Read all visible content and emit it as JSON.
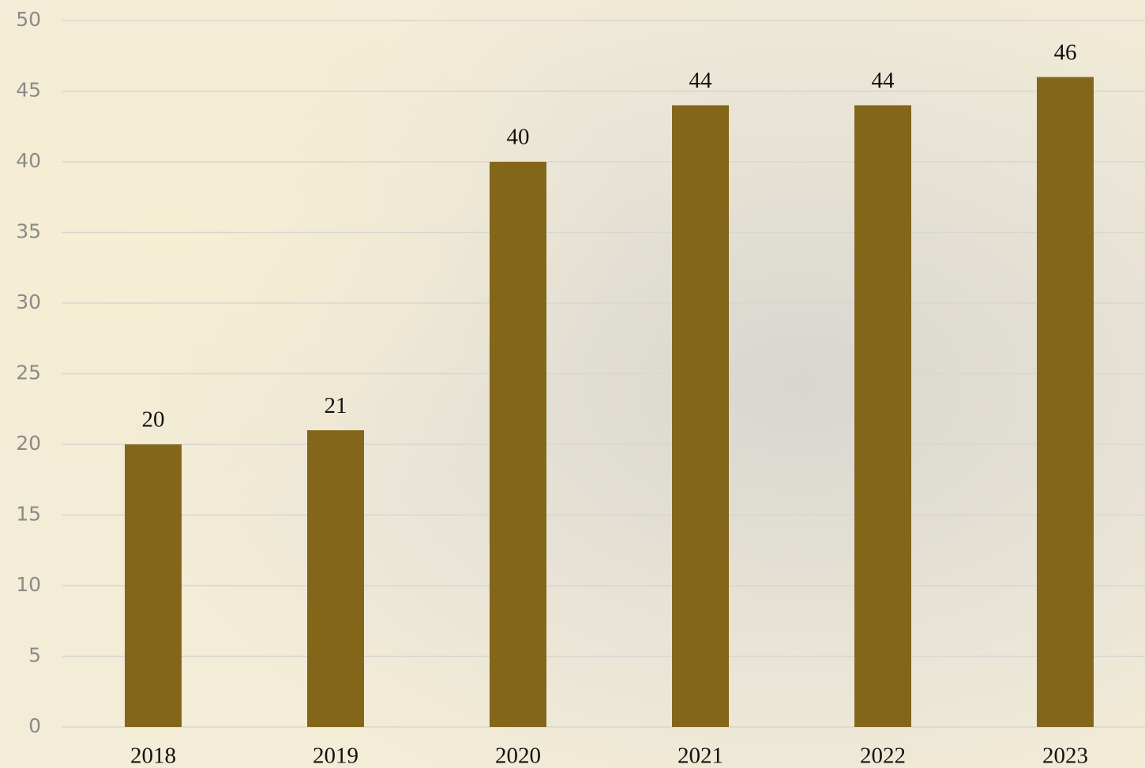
{
  "chart_data": {
    "type": "bar",
    "categories": [
      "2018",
      "2019",
      "2020",
      "2021",
      "2022",
      "2023"
    ],
    "values": [
      20,
      21,
      40,
      44,
      44,
      46
    ],
    "color": "#83661a",
    "ylim": [
      0,
      50
    ],
    "yticks": [
      0,
      5,
      10,
      15,
      20,
      25,
      30,
      35,
      40,
      45,
      50
    ],
    "grid": true
  }
}
